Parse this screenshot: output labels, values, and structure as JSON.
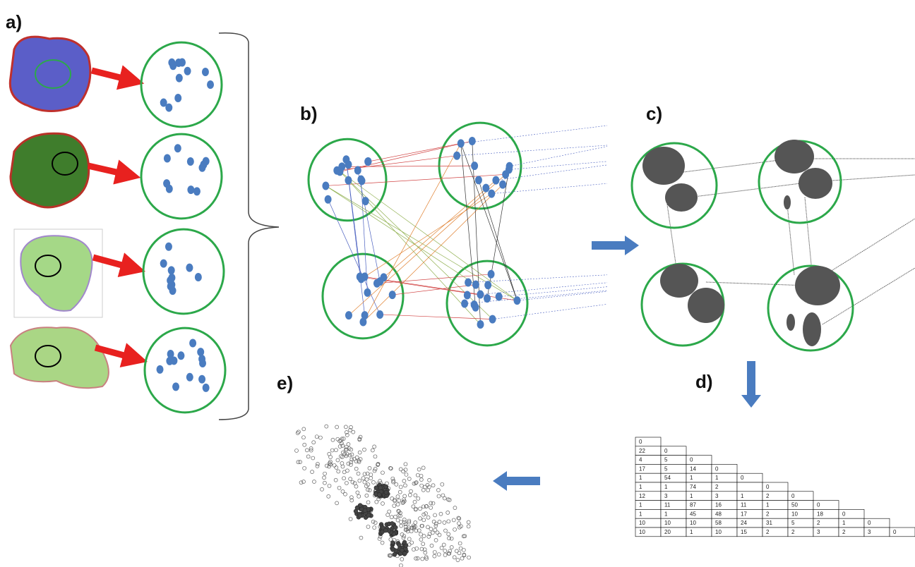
{
  "labels": {
    "a": "a)",
    "b": "b)",
    "c": "c)",
    "d": "d)",
    "e": "e)"
  },
  "table": {
    "rows": [
      [
        0
      ],
      [
        22,
        0
      ],
      [
        4,
        5,
        0
      ],
      [
        17,
        5,
        14,
        0
      ],
      [
        1,
        54,
        1,
        1,
        0
      ],
      [
        1,
        1,
        74,
        2,
        null,
        0
      ],
      [
        12,
        3,
        1,
        3,
        1,
        2,
        0
      ],
      [
        1,
        11,
        87,
        16,
        11,
        1,
        50,
        0
      ],
      [
        1,
        1,
        45,
        48,
        17,
        2,
        10,
        18,
        0
      ],
      [
        10,
        10,
        10,
        58,
        24,
        31,
        5,
        2,
        1,
        0
      ],
      [
        10,
        20,
        1,
        10,
        15,
        2,
        2,
        3,
        2,
        3,
        0
      ]
    ]
  }
}
